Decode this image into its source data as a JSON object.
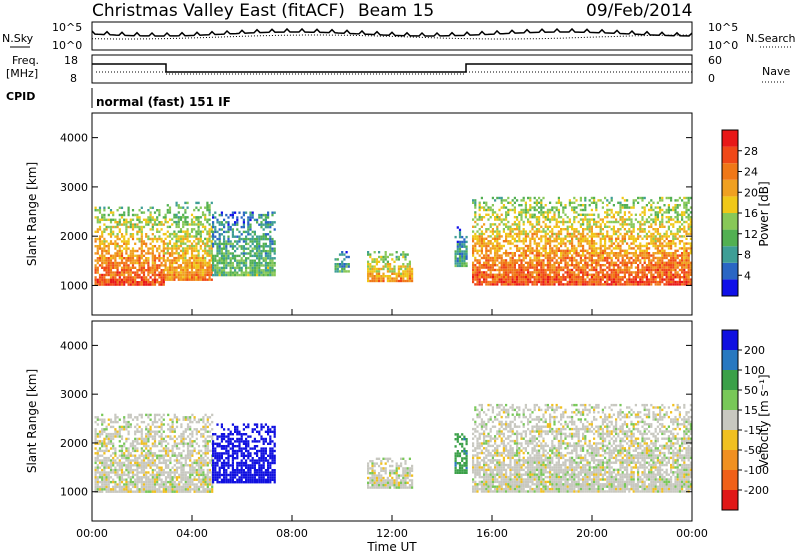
{
  "header": {
    "station": "Christmas Valley East (fitACF)",
    "beam": "Beam 15",
    "date": "09/Feb/2014"
  },
  "top_panels": {
    "nsky_label": "N.Sky",
    "nsky_tick_top": "10^5",
    "nsky_tick_bottom": "10^0",
    "nsearch_label": "N.Search",
    "nsearch_tick_top": "10^5",
    "nsearch_tick_bottom": "10^0",
    "freq_label_1": "Freq.",
    "freq_label_2": "[MHz]",
    "freq_tick_top": "18",
    "freq_tick_bottom": "8",
    "nave_label": "Nave",
    "nave_tick_top": "60",
    "nave_tick_bottom": "0",
    "cpid_label": "CPID",
    "cpid_value": "normal (fast) 151 IF"
  },
  "colors": {
    "power": [
      "#1010e8",
      "#2a66c4",
      "#3e9e96",
      "#52b052",
      "#88c858",
      "#f0c818",
      "#f0a020",
      "#f07818",
      "#f04818",
      "#e81818"
    ],
    "velocity_pos": [
      "#1010e0",
      "#2878c0",
      "#3aa048",
      "#78c858"
    ],
    "velocity_ground": "#c8c8c0",
    "velocity_neg": [
      "#f0c020",
      "#f09020",
      "#f06018",
      "#e01818"
    ]
  },
  "chart_data": [
    {
      "type": "heatmap",
      "title": "Power",
      "ylabel": "Slant Range [km]",
      "yticks": [
        "1000",
        "2000",
        "3000",
        "4000"
      ],
      "ylim": [
        400,
        4500
      ],
      "xlim": [
        0,
        24
      ],
      "colorbar_label": "Power [dB]",
      "colorbar_ticks": [
        "4",
        "8",
        "12",
        "16",
        "20",
        "24",
        "28"
      ],
      "colorbar_range": [
        0,
        30
      ],
      "echo_regions": [
        {
          "t": [
            0.1,
            2.9
          ],
          "range_km": [
            1000,
            2600
          ],
          "value_db": 26
        },
        {
          "t": [
            2.9,
            4.8
          ],
          "range_km": [
            1100,
            2700
          ],
          "value_db": 22
        },
        {
          "t": [
            4.8,
            7.3
          ],
          "range_km": [
            1200,
            2500
          ],
          "value_db": 12
        },
        {
          "t": [
            9.7,
            10.3
          ],
          "range_km": [
            1300,
            1700
          ],
          "value_db": 10
        },
        {
          "t": [
            11.0,
            12.8
          ],
          "range_km": [
            1100,
            1700
          ],
          "value_db": 22
        },
        {
          "t": [
            14.5,
            15.0
          ],
          "range_km": [
            1400,
            2200
          ],
          "value_db": 10
        },
        {
          "t": [
            15.2,
            24.0
          ],
          "range_km": [
            1000,
            2800
          ],
          "value_db": 26
        }
      ]
    },
    {
      "type": "heatmap",
      "title": "Velocity",
      "ylabel": "Slant Range [km]",
      "xlabel": "Time UT",
      "yticks": [
        "1000",
        "2000",
        "3000",
        "4000"
      ],
      "xticks": [
        "00:00",
        "04:00",
        "08:00",
        "12:00",
        "16:00",
        "20:00",
        "00:00"
      ],
      "ylim": [
        400,
        4500
      ],
      "xlim": [
        0,
        24
      ],
      "colorbar_label": "Velocity [m s⁻¹]",
      "colorbar_ticks": [
        "200",
        "100",
        "50",
        "15",
        "-15",
        "-50",
        "-100",
        "-200"
      ],
      "colorbar_range": [
        -250,
        250
      ],
      "echo_regions": [
        {
          "t": [
            0.1,
            4.8
          ],
          "range_km": [
            1000,
            2600
          ],
          "value_ms": 0
        },
        {
          "t": [
            4.8,
            7.3
          ],
          "range_km": [
            1200,
            2400
          ],
          "value_ms": 200
        },
        {
          "t": [
            11.0,
            12.8
          ],
          "range_km": [
            1100,
            1700
          ],
          "value_ms": 0
        },
        {
          "t": [
            14.5,
            15.0
          ],
          "range_km": [
            1400,
            2200
          ],
          "value_ms": 60
        },
        {
          "t": [
            15.2,
            24.0
          ],
          "range_km": [
            1000,
            2800
          ],
          "value_ms": 0
        }
      ]
    }
  ]
}
